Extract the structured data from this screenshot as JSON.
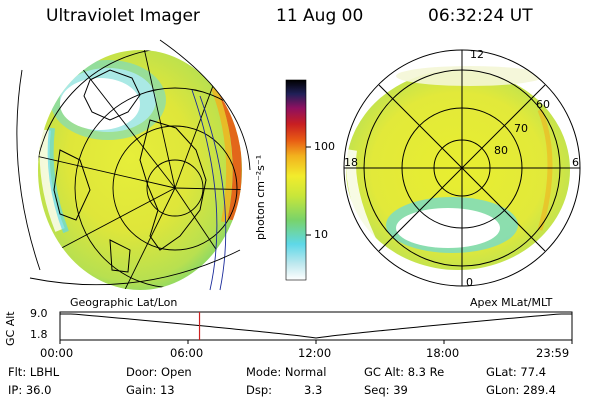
{
  "header": {
    "instrument": "Ultraviolet Imager",
    "date": "11 Aug 00",
    "time": "06:32:24 UT"
  },
  "colorbar": {
    "label": "photon cm⁻²s⁻¹",
    "ticks": [
      "100",
      "10"
    ],
    "scale": "log",
    "colors": [
      "#ffffff",
      "#bfe8ee",
      "#5ed8e8",
      "#79d36a",
      "#c8e63a",
      "#f2ec2c",
      "#f2b21e",
      "#e85a14",
      "#c81e22",
      "#8e1060",
      "#202058",
      "#000000"
    ]
  },
  "left_image": {
    "caption": "Geographic Lat/Lon"
  },
  "right_image": {
    "caption": "Apex MLat/MLT",
    "mlt_labels": {
      "top": "12",
      "left": "18",
      "right": "6",
      "bottom": "0"
    },
    "lat_labels": [
      "60",
      "70",
      "80"
    ]
  },
  "altitude_plot": {
    "ylabel": "GC Alt",
    "yticks": [
      "9.0",
      "1.8"
    ],
    "xticks": [
      "00:00",
      "06:00",
      "12:00",
      "18:00",
      "23:59"
    ],
    "marker_time_hours": 6.54,
    "line_color": "#000000",
    "marker_color": "#cc2222"
  },
  "info": {
    "flt": "Flt: LBHL",
    "ip": "IP: 36.0",
    "door": "Door: Open",
    "gain": "Gain: 13",
    "mode": "Mode: Normal",
    "dsp_label": "Dsp:",
    "dsp_value": "3.3",
    "gcalt": "GC Alt: 8.3 Re",
    "seq": "Seq: 39",
    "glat": "GLat: 77.4",
    "glon": "GLon: 289.4"
  }
}
